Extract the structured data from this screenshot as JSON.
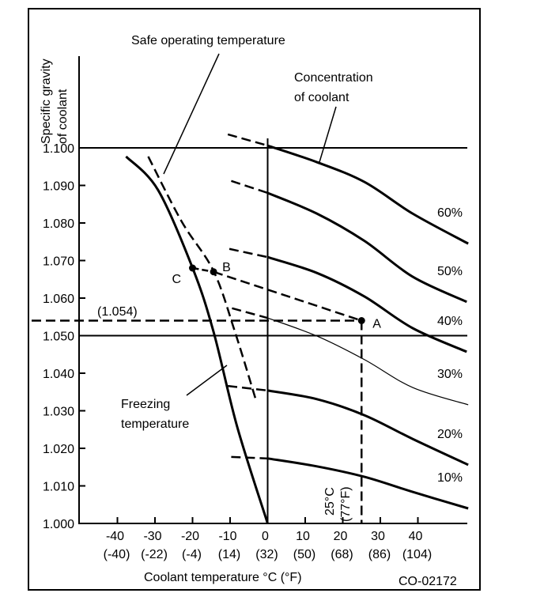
{
  "chart_data": {
    "type": "line",
    "ylabel": [
      "Specific gravity",
      "of coolant"
    ],
    "xlabel": "Coolant temperature °C (°F)",
    "figure_id": "CO-02172",
    "xlim": [
      -50,
      53
    ],
    "ylim": [
      1.0,
      1.11
    ],
    "x_ticks": [
      {
        "c": "-40",
        "f": "(-40)",
        "v": -40
      },
      {
        "c": "-30",
        "f": "(-22)",
        "v": -30
      },
      {
        "c": "-20",
        "f": "(-4)",
        "v": -20
      },
      {
        "c": "-10",
        "f": "(14)",
        "v": -10
      },
      {
        "c": "0",
        "f": "(32)",
        "v": 0
      },
      {
        "c": "10",
        "f": "(50)",
        "v": 10
      },
      {
        "c": "20",
        "f": "(68)",
        "v": 20
      },
      {
        "c": "30",
        "f": "(86)",
        "v": 30
      },
      {
        "c": "40",
        "f": "(104)",
        "v": 40
      }
    ],
    "y_ticks": [
      "1.000",
      "1.010",
      "1.020",
      "1.030",
      "1.040",
      "1.050",
      "1.060",
      "1.070",
      "1.080",
      "1.090",
      "1.100"
    ],
    "reference_lines": {
      "horizontal": [
        1.1,
        1.05
      ],
      "vertical": [
        0
      ]
    },
    "series": [
      {
        "name": "60%",
        "weight": "bold",
        "points": [
          [
            -10.6,
            1.1036
          ],
          [
            0,
            1.1006
          ],
          [
            13.1,
            1.0962
          ],
          [
            25.8,
            1.0909
          ],
          [
            38.6,
            1.0825
          ],
          [
            53.4,
            1.0745
          ]
        ]
      },
      {
        "name": "50%",
        "weight": "bold",
        "points": [
          [
            -9.7,
            1.0912
          ],
          [
            0,
            1.088
          ],
          [
            13.1,
            1.0825
          ],
          [
            25.8,
            1.0752
          ],
          [
            38.6,
            1.0657
          ],
          [
            53,
            1.059
          ]
        ]
      },
      {
        "name": "40%",
        "weight": "bold",
        "points": [
          [
            -10.2,
            1.0731
          ],
          [
            0,
            1.0709
          ],
          [
            13.1,
            1.0667
          ],
          [
            25.8,
            1.0604
          ],
          [
            38.6,
            1.052
          ],
          [
            53,
            1.0457
          ]
        ]
      },
      {
        "name": "30%",
        "weight": "thin",
        "points": [
          [
            -9.5,
            1.0573
          ],
          [
            0,
            1.0547
          ],
          [
            13.1,
            1.0499
          ],
          [
            25.8,
            1.0436
          ],
          [
            38.6,
            1.0362
          ],
          [
            53.4,
            1.0316
          ]
        ]
      },
      {
        "name": "20%",
        "weight": "bold",
        "points": [
          [
            -10.6,
            1.0366
          ],
          [
            0,
            1.0354
          ],
          [
            13.1,
            1.0331
          ],
          [
            25.8,
            1.0288
          ],
          [
            38.6,
            1.0225
          ],
          [
            53.4,
            1.0156
          ]
        ]
      },
      {
        "name": "10%",
        "weight": "bold",
        "points": [
          [
            -9.7,
            1.0177
          ],
          [
            0,
            1.0173
          ],
          [
            13.1,
            1.0152
          ],
          [
            25.8,
            1.0124
          ],
          [
            38.6,
            1.0084
          ],
          [
            53.4,
            1.004
          ]
        ]
      }
    ],
    "freezing_curve": {
      "label": [
        "Freezing",
        "temperature"
      ],
      "points": [
        [
          -37.7,
          1.0977
        ],
        [
          -29.2,
          1.0888
        ],
        [
          -19.9,
          1.0678
        ],
        [
          -14.4,
          1.051
        ],
        [
          -8.1,
          1.0257
        ],
        [
          0,
          1.0
        ]
      ]
    },
    "safe_curve": {
      "label": "Safe operating temperature",
      "points": [
        [
          -31.8,
          1.0977
        ],
        [
          -22.9,
          1.0804
        ],
        [
          -14.4,
          1.0672
        ],
        [
          -8.7,
          1.051
        ],
        [
          -3.2,
          1.0331
        ]
      ]
    },
    "concentration_label": [
      "Concentration",
      "of coolant"
    ],
    "points": [
      {
        "name": "A",
        "x": 25,
        "y": 1.054
      },
      {
        "name": "B",
        "x": -14.4,
        "y": 1.067
      },
      {
        "name": "C",
        "x": -20,
        "y": 1.068
      }
    ],
    "reading_label": "(1.054)",
    "temp_marker": [
      "25°C",
      "(77°F)"
    ]
  }
}
